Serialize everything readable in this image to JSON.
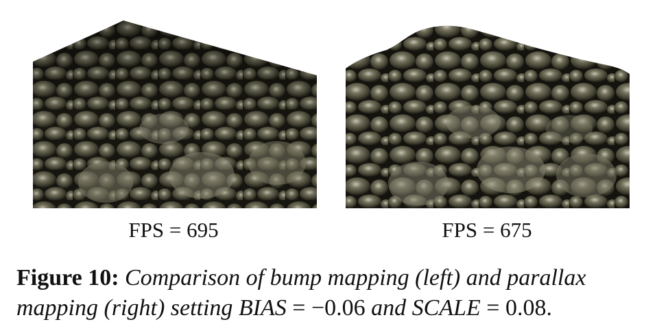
{
  "figure": {
    "left_panel": {
      "fps_text": "FPS = 695"
    },
    "right_panel": {
      "fps_text": "FPS = 675"
    },
    "caption": {
      "label": "Figure 10:",
      "part1": " Comparison of bump mapping (left) and parallax mapping (right) setting ",
      "bias_name": "BIAS",
      "eq1": " = ",
      "bias_value": "−0.06",
      "part2": " and ",
      "scale_name": "SCALE",
      "eq2": " = ",
      "scale_value": "0.08."
    }
  }
}
